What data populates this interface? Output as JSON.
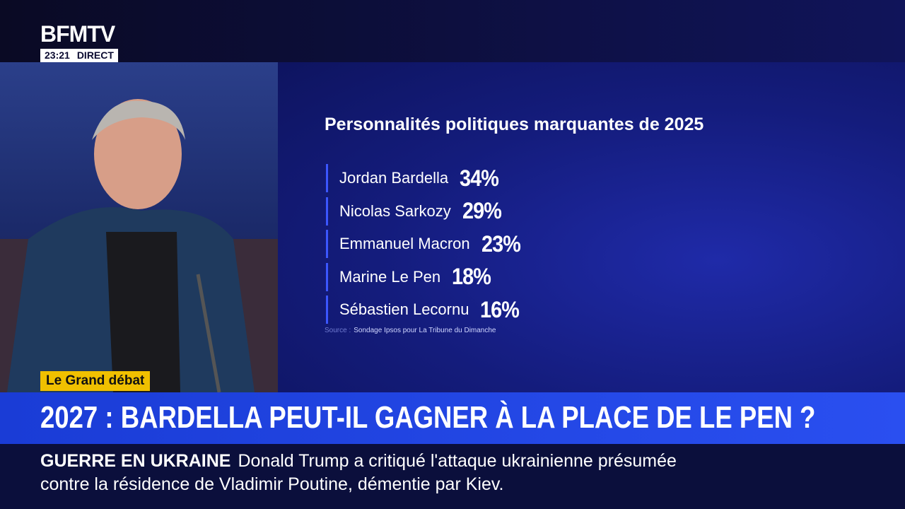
{
  "channel": {
    "logo": "BFMTV",
    "time": "23:21",
    "live": "DIRECT"
  },
  "graphic": {
    "title": "Personnalités politiques marquantes de 2025",
    "items": [
      {
        "name": "Jordan Bardella",
        "value": "34%"
      },
      {
        "name": "Nicolas Sarkozy",
        "value": "29%"
      },
      {
        "name": "Emmanuel Macron",
        "value": "23%"
      },
      {
        "name": "Marine Le Pen",
        "value": "18%"
      },
      {
        "name": "Sébastien Lecornu",
        "value": "16%"
      }
    ],
    "source_label": "Source :",
    "source": "Sondage Ipsos pour La Tribune du Dimanche"
  },
  "show": "Le Grand débat",
  "headline": "2027 : BARDELLA PEUT-IL GAGNER À LA PLACE DE LE PEN ?",
  "ticker": {
    "label": "GUERRE EN UKRAINE",
    "text": "Donald Trump a critiqué l'attaque ukrainienne présumée contre la résidence de Vladimir Poutine, démentie par Kiev."
  }
}
